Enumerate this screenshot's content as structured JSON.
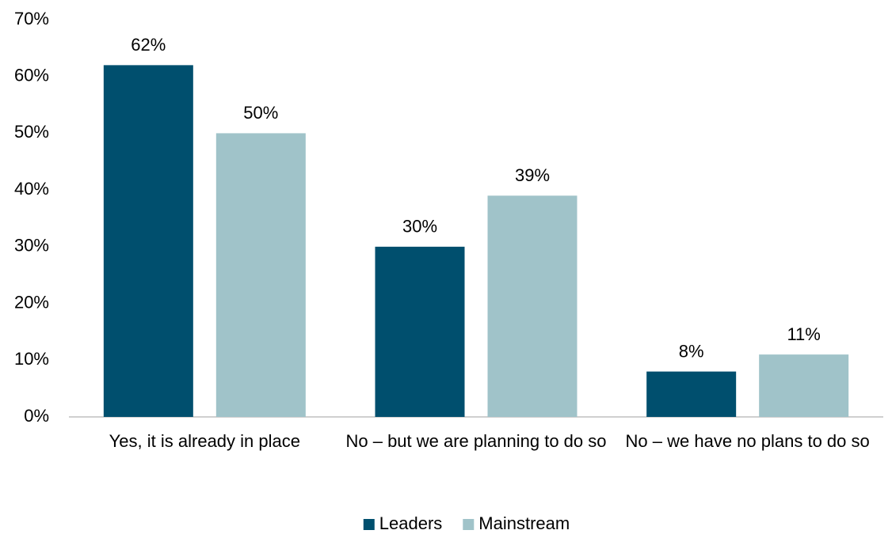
{
  "chart_data": {
    "type": "bar",
    "categories": [
      "Yes, it is already in place",
      "No – but we are planning to do so",
      "No – we have no plans to do so"
    ],
    "series": [
      {
        "name": "Leaders",
        "color": "#004f6e",
        "values": [
          62,
          30,
          8
        ],
        "value_labels": [
          "62%",
          "30%",
          "8%"
        ]
      },
      {
        "name": "Mainstream",
        "color": "#a0c3c9",
        "values": [
          50,
          39,
          11
        ],
        "value_labels": [
          "50%",
          "39%",
          "11%"
        ]
      }
    ],
    "ylim": [
      0,
      70
    ],
    "yticks": [
      {
        "value": 0,
        "label": "0%"
      },
      {
        "value": 10,
        "label": "10%"
      },
      {
        "value": 20,
        "label": "20%"
      },
      {
        "value": 30,
        "label": "30%"
      },
      {
        "value": 40,
        "label": "40%"
      },
      {
        "value": 50,
        "label": "50%"
      },
      {
        "value": 60,
        "label": "60%"
      },
      {
        "value": 70,
        "label": "70%"
      }
    ],
    "grid": false,
    "legend": "bottom"
  }
}
